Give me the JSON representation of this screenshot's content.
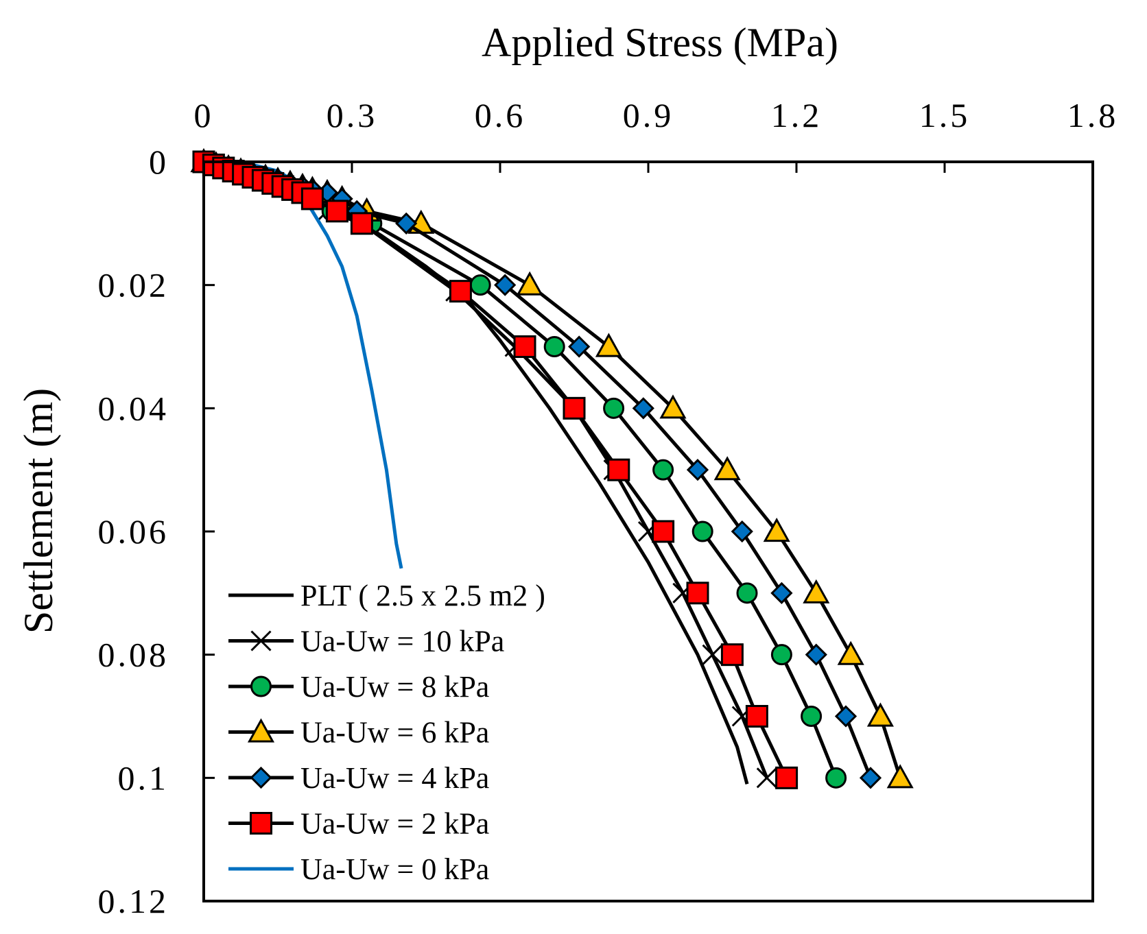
{
  "chart_data": {
    "type": "line",
    "title": "",
    "xlabel": "Applied Stress (MPa)",
    "ylabel": "Settlement (m)",
    "x_axis_position": "top",
    "y_axis_inverted": true,
    "xlim": [
      0,
      1.8
    ],
    "ylim": [
      0,
      0.12
    ],
    "xticks": [
      "0",
      "0.3",
      "0.6",
      "0.9",
      "1.2",
      "1.5",
      "1.8"
    ],
    "yticks": [
      "0",
      "0.02",
      "0.04",
      "0.06",
      "0.08",
      "0.1",
      "0.12"
    ],
    "xtick_values": [
      0,
      0.3,
      0.6,
      0.9,
      1.2,
      1.5,
      1.8
    ],
    "ytick_values": [
      0,
      0.02,
      0.04,
      0.06,
      0.08,
      0.1,
      0.12
    ],
    "legend_position": "bottom-left",
    "series": [
      {
        "name": "PLT ( 2.5 x 2.5 m2 )",
        "marker": "none",
        "color": "#000000",
        "x": [
          0,
          0.05,
          0.1,
          0.15,
          0.2,
          0.25,
          0.3,
          0.36,
          0.45,
          0.53,
          0.6,
          0.7,
          0.8,
          0.9,
          1.0,
          1.08,
          1.1
        ],
        "y": [
          0,
          0.0008,
          0.0018,
          0.003,
          0.0045,
          0.0065,
          0.009,
          0.012,
          0.017,
          0.022,
          0.029,
          0.04,
          0.052,
          0.065,
          0.08,
          0.095,
          0.101
        ]
      },
      {
        "name": "Ua-Uw = 10 kPa",
        "marker": "x",
        "color": "#000000",
        "x": [
          0,
          0.02,
          0.04,
          0.06,
          0.08,
          0.1,
          0.12,
          0.14,
          0.16,
          0.18,
          0.2,
          0.22,
          0.25,
          0.32,
          0.51,
          0.63,
          0.75,
          0.83,
          0.9,
          0.97,
          1.03,
          1.09,
          1.14
        ],
        "y": [
          0,
          0.0005,
          0.001,
          0.0015,
          0.002,
          0.0025,
          0.003,
          0.0035,
          0.004,
          0.0045,
          0.005,
          0.006,
          0.008,
          0.01,
          0.021,
          0.03,
          0.04,
          0.05,
          0.06,
          0.07,
          0.08,
          0.09,
          0.1
        ]
      },
      {
        "name": "Ua-Uw = 8 kPa",
        "marker": "circle",
        "color": "#00b050",
        "x": [
          0,
          0.02,
          0.04,
          0.06,
          0.08,
          0.1,
          0.12,
          0.14,
          0.16,
          0.18,
          0.2,
          0.22,
          0.26,
          0.34,
          0.56,
          0.71,
          0.83,
          0.93,
          1.01,
          1.1,
          1.17,
          1.23,
          1.28
        ],
        "y": [
          0,
          0.0005,
          0.001,
          0.0015,
          0.002,
          0.0025,
          0.003,
          0.0035,
          0.004,
          0.0045,
          0.005,
          0.006,
          0.008,
          0.01,
          0.02,
          0.03,
          0.04,
          0.05,
          0.06,
          0.07,
          0.08,
          0.09,
          0.1
        ]
      },
      {
        "name": "Ua-Uw = 6 kPa",
        "marker": "triangle",
        "color": "#ffc000",
        "x": [
          0,
          0.025,
          0.05,
          0.075,
          0.1,
          0.125,
          0.15,
          0.175,
          0.2,
          0.22,
          0.25,
          0.28,
          0.33,
          0.44,
          0.66,
          0.82,
          0.95,
          1.06,
          1.16,
          1.24,
          1.31,
          1.37,
          1.41
        ],
        "y": [
          0,
          0.0005,
          0.001,
          0.0015,
          0.002,
          0.0025,
          0.003,
          0.0035,
          0.004,
          0.0045,
          0.005,
          0.006,
          0.008,
          0.01,
          0.02,
          0.03,
          0.04,
          0.05,
          0.06,
          0.07,
          0.08,
          0.09,
          0.1
        ]
      },
      {
        "name": "Ua-Uw = 4 kPa",
        "marker": "diamond",
        "color": "#0070c0",
        "x": [
          0,
          0.025,
          0.05,
          0.075,
          0.1,
          0.125,
          0.15,
          0.175,
          0.2,
          0.22,
          0.25,
          0.28,
          0.31,
          0.41,
          0.61,
          0.76,
          0.89,
          1.0,
          1.09,
          1.17,
          1.24,
          1.3,
          1.35
        ],
        "y": [
          0,
          0.0005,
          0.001,
          0.0015,
          0.002,
          0.0025,
          0.003,
          0.0035,
          0.004,
          0.0045,
          0.005,
          0.006,
          0.008,
          0.01,
          0.02,
          0.03,
          0.04,
          0.05,
          0.06,
          0.07,
          0.08,
          0.09,
          0.1
        ]
      },
      {
        "name": "Ua-Uw = 2 kPa",
        "marker": "square",
        "color": "#ff0000",
        "x": [
          0,
          0.02,
          0.04,
          0.06,
          0.08,
          0.1,
          0.12,
          0.14,
          0.16,
          0.18,
          0.2,
          0.22,
          0.27,
          0.32,
          0.52,
          0.65,
          0.75,
          0.84,
          0.93,
          1.0,
          1.07,
          1.12,
          1.18
        ],
        "y": [
          0,
          0.0005,
          0.001,
          0.0015,
          0.002,
          0.0025,
          0.003,
          0.0035,
          0.004,
          0.0045,
          0.005,
          0.006,
          0.008,
          0.01,
          0.021,
          0.03,
          0.04,
          0.05,
          0.06,
          0.07,
          0.08,
          0.09,
          0.1
        ]
      },
      {
        "name": "Ua-Uw = 0 kPa",
        "marker": "none",
        "color": "#0070c0",
        "x": [
          0,
          0.1,
          0.15,
          0.18,
          0.2,
          0.22,
          0.25,
          0.28,
          0.31,
          0.34,
          0.37,
          0.39,
          0.4
        ],
        "y": [
          0,
          0.0005,
          0.0015,
          0.003,
          0.0055,
          0.008,
          0.012,
          0.017,
          0.025,
          0.037,
          0.05,
          0.062,
          0.066
        ]
      }
    ]
  }
}
